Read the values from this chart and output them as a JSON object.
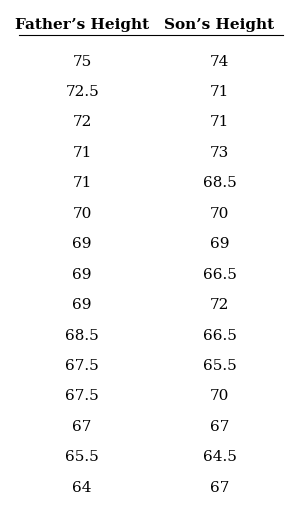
{
  "col1_header": "Father’s Height",
  "col2_header": "Son’s Height",
  "fathers": [
    "75",
    "72.5",
    "72",
    "71",
    "71",
    "70",
    "69",
    "69",
    "69",
    "68.5",
    "67.5",
    "67.5",
    "67",
    "65.5",
    "64"
  ],
  "sons": [
    "74",
    "71",
    "71",
    "73",
    "68.5",
    "70",
    "69",
    "66.5",
    "72",
    "66.5",
    "65.5",
    "70",
    "67",
    "64.5",
    "67"
  ],
  "bg_color": "#ffffff",
  "text_color": "#000000",
  "header_fontsize": 11,
  "data_fontsize": 11,
  "figsize": [
    2.91,
    5.13
  ],
  "dpi": 100
}
